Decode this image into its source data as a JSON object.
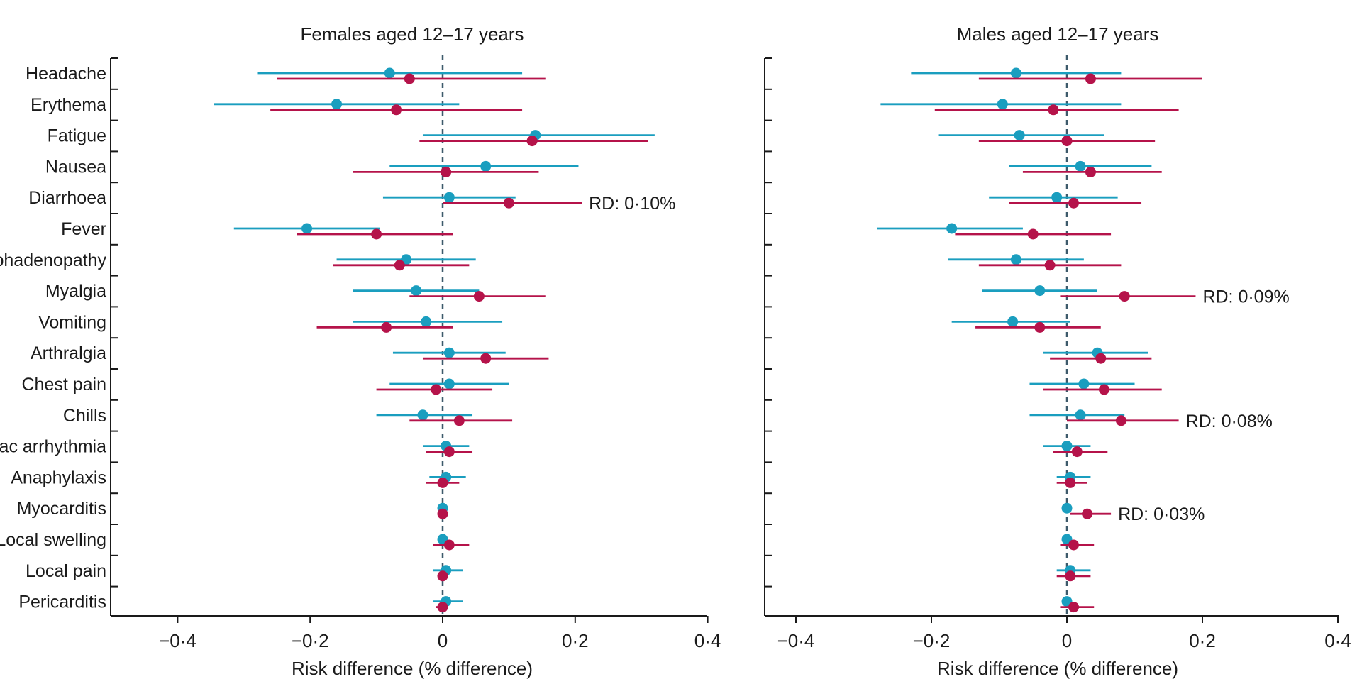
{
  "chart_data": [
    {
      "type": "forest",
      "title": "Females aged 12–17 years",
      "xlabel": "Risk difference (% difference)",
      "xlim": [
        -0.5,
        0.4
      ],
      "xticks": [
        -0.4,
        -0.2,
        0,
        0.2,
        0.4
      ],
      "xtick_labels": [
        "−0·4",
        "−0·2",
        "0",
        "0·2",
        "0·4"
      ],
      "categories": [
        "Headache",
        "Erythema",
        "Fatigue",
        "Nausea",
        "Diarrhoea",
        "Fever",
        "Lymphadenopathy",
        "Myalgia",
        "Vomiting",
        "Arthralgia",
        "Chest pain",
        "Chills",
        "Cardiac arrhythmia",
        "Anaphylaxis",
        "Myocarditis",
        "Local swelling",
        "Local pain",
        "Pericarditis"
      ],
      "series": [
        {
          "name": "blue",
          "color": "#1a9ebf",
          "estimate": [
            -0.08,
            -0.16,
            0.14,
            0.065,
            0.01,
            -0.205,
            -0.055,
            -0.04,
            -0.025,
            0.01,
            0.01,
            -0.03,
            0.005,
            0.005,
            0.0,
            0.0,
            0.005,
            0.005
          ],
          "lower": [
            -0.28,
            -0.345,
            -0.03,
            -0.08,
            -0.09,
            -0.315,
            -0.16,
            -0.135,
            -0.135,
            -0.075,
            -0.08,
            -0.1,
            -0.03,
            -0.02,
            -0.005,
            -0.005,
            -0.015,
            -0.015
          ],
          "upper": [
            0.12,
            0.025,
            0.32,
            0.205,
            0.11,
            -0.095,
            0.05,
            0.055,
            0.09,
            0.095,
            0.1,
            0.045,
            0.04,
            0.035,
            0.005,
            0.005,
            0.03,
            0.03
          ]
        },
        {
          "name": "red",
          "color": "#b5134a",
          "estimate": [
            -0.05,
            -0.07,
            0.135,
            0.005,
            0.1,
            -0.1,
            -0.065,
            0.055,
            -0.085,
            0.065,
            -0.01,
            0.025,
            0.01,
            0.0,
            0.0,
            0.01,
            0.0,
            0.0
          ],
          "lower": [
            -0.25,
            -0.26,
            -0.035,
            -0.135,
            0.0,
            -0.22,
            -0.165,
            -0.05,
            -0.19,
            -0.03,
            -0.1,
            -0.05,
            -0.025,
            -0.025,
            -0.005,
            -0.015,
            -0.005,
            -0.01
          ],
          "upper": [
            0.155,
            0.12,
            0.31,
            0.145,
            0.21,
            0.015,
            0.04,
            0.155,
            0.015,
            0.16,
            0.075,
            0.105,
            0.045,
            0.025,
            0.005,
            0.04,
            0.005,
            0.005
          ]
        }
      ],
      "annotations": [
        {
          "category": "Diarrhoea",
          "text": "RD: 0·10%"
        }
      ]
    },
    {
      "type": "forest",
      "title": "Males aged 12–17 years",
      "xlabel": "Risk difference (% difference)",
      "xlim": [
        -0.45,
        0.4
      ],
      "xticks": [
        -0.4,
        -0.2,
        0,
        0.2,
        0.4
      ],
      "xtick_labels": [
        "−0·4",
        "−0·2",
        "0",
        "0·2",
        "0·4"
      ],
      "categories": [
        "Headache",
        "Erythema",
        "Fatigue",
        "Nausea",
        "Diarrhoea",
        "Fever",
        "Lymphadenopathy",
        "Myalgia",
        "Vomiting",
        "Arthralgia",
        "Chest pain",
        "Chills",
        "Cardiac arrhythmia",
        "Anaphylaxis",
        "Myocarditis",
        "Local swelling",
        "Local pain",
        "Pericarditis"
      ],
      "series": [
        {
          "name": "blue",
          "color": "#1a9ebf",
          "estimate": [
            -0.075,
            -0.095,
            -0.07,
            0.02,
            -0.015,
            -0.17,
            -0.075,
            -0.04,
            -0.08,
            0.045,
            0.025,
            0.02,
            0.0,
            0.005,
            0.0,
            0.0,
            0.005,
            0.0
          ],
          "lower": [
            -0.23,
            -0.275,
            -0.19,
            -0.085,
            -0.115,
            -0.28,
            -0.175,
            -0.125,
            -0.17,
            -0.035,
            -0.055,
            -0.055,
            -0.035,
            -0.015,
            -0.005,
            -0.005,
            -0.015,
            -0.005
          ],
          "upper": [
            0.08,
            0.08,
            0.055,
            0.125,
            0.075,
            -0.065,
            0.025,
            0.045,
            0.005,
            0.12,
            0.1,
            0.085,
            0.035,
            0.035,
            0.005,
            0.005,
            0.035,
            0.005
          ]
        },
        {
          "name": "red",
          "color": "#b5134a",
          "estimate": [
            0.035,
            -0.02,
            0.0,
            0.035,
            0.01,
            -0.05,
            -0.025,
            0.085,
            -0.04,
            0.05,
            0.055,
            0.08,
            0.015,
            0.005,
            0.03,
            0.01,
            0.005,
            0.01
          ],
          "lower": [
            -0.13,
            -0.195,
            -0.13,
            -0.065,
            -0.085,
            -0.165,
            -0.13,
            -0.01,
            -0.135,
            -0.025,
            -0.035,
            0.0,
            -0.02,
            -0.015,
            0.005,
            -0.01,
            -0.015,
            -0.01
          ],
          "upper": [
            0.2,
            0.165,
            0.13,
            0.14,
            0.11,
            0.065,
            0.08,
            0.19,
            0.05,
            0.125,
            0.14,
            0.165,
            0.06,
            0.03,
            0.065,
            0.04,
            0.035,
            0.04
          ]
        }
      ],
      "annotations": [
        {
          "category": "Myalgia",
          "text": "RD: 0·09%"
        },
        {
          "category": "Chills",
          "text": "RD: 0·08%"
        },
        {
          "category": "Myocarditis",
          "text": "RD: 0·03%"
        }
      ]
    }
  ]
}
